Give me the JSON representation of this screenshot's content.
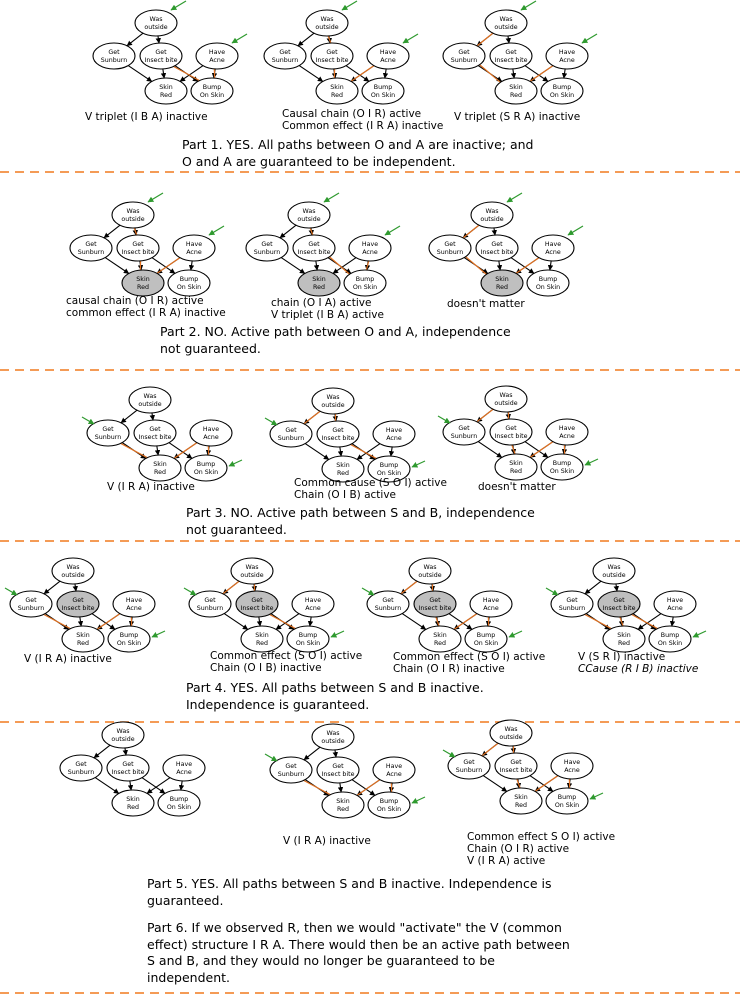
{
  "nodes": {
    "O": {
      "lines": [
        "Was",
        "outside"
      ]
    },
    "S": {
      "lines": [
        "Get",
        "Sunburn"
      ]
    },
    "I": {
      "lines": [
        "Get",
        "Insect bite"
      ]
    },
    "A": {
      "lines": [
        "Have",
        "Acne"
      ]
    },
    "R": {
      "lines": [
        "Skin",
        "Red"
      ]
    },
    "B": {
      "lines": [
        "Bump",
        "On Skin"
      ]
    }
  },
  "edges": [
    [
      "O",
      "S"
    ],
    [
      "O",
      "I"
    ],
    [
      "S",
      "R"
    ],
    [
      "I",
      "R"
    ],
    [
      "I",
      "B"
    ],
    [
      "A",
      "R"
    ],
    [
      "A",
      "B"
    ]
  ],
  "colors": {
    "path": "#e07020",
    "arrow": "#2f9a2f",
    "observed": "#bfbfbf",
    "divider": "#f07a1e",
    "stroke": "#000000"
  },
  "diagrams": [
    {
      "id": "p1a",
      "row": 1,
      "observed": [],
      "markers": [
        "O",
        "A"
      ],
      "path": [
        "I",
        "B",
        "A"
      ],
      "caption": [
        "V triplet (I B A) inactive"
      ]
    },
    {
      "id": "p1b",
      "row": 1,
      "observed": [],
      "markers": [
        "O",
        "A"
      ],
      "path": [
        "O",
        "I",
        "R",
        "A"
      ],
      "caption": [
        "Causal chain (O I R) active",
        "Common effect (I R A) inactive"
      ]
    },
    {
      "id": "p1c",
      "row": 1,
      "observed": [],
      "markers": [
        "O",
        "A"
      ],
      "path": [
        "O",
        "S",
        "R",
        "A"
      ],
      "caption": [
        "V triplet (S R A) inactive"
      ]
    },
    {
      "id": "p2a",
      "row": 2,
      "observed": [
        "R"
      ],
      "markers": [
        "O",
        "A"
      ],
      "path": [
        "O",
        "I",
        "R",
        "A"
      ],
      "caption": [
        "causal chain  (O I R) active",
        "common effect  (I R A) inactive"
      ]
    },
    {
      "id": "p2b",
      "row": 2,
      "observed": [
        "R"
      ],
      "markers": [
        "O",
        "A"
      ],
      "path": [
        "O",
        "I",
        "B",
        "A"
      ],
      "caption": [
        "chain (O I A) active",
        "V triplet (I B A) active"
      ]
    },
    {
      "id": "p2c",
      "row": 2,
      "observed": [
        "R"
      ],
      "markers": [
        "O",
        "A"
      ],
      "path": [
        "O",
        "S",
        "R",
        "A"
      ],
      "caption": [
        "doesn't matter"
      ]
    },
    {
      "id": "p3a",
      "row": 3,
      "observed": [],
      "markers": [
        "S",
        "B"
      ],
      "path": [
        "S",
        "R",
        "A",
        "B"
      ],
      "caption": [
        "V (I R A) inactive"
      ]
    },
    {
      "id": "p3b",
      "row": 3,
      "observed": [],
      "markers": [
        "S",
        "B"
      ],
      "path": [
        "S",
        "O",
        "I",
        "B"
      ],
      "caption": [
        "Common cause (S O I) active",
        "Chain (O I B) active"
      ]
    },
    {
      "id": "p3c",
      "row": 3,
      "observed": [],
      "markers": [
        "S",
        "B"
      ],
      "path": [
        "S",
        "O",
        "I",
        "R",
        "A",
        "B"
      ],
      "caption": [
        "doesn't matter"
      ]
    },
    {
      "id": "p4a",
      "row": 4,
      "observed": [
        "I"
      ],
      "markers": [
        "S",
        "B"
      ],
      "path": [
        "S",
        "R",
        "A",
        "B"
      ],
      "caption": [
        "V (I R A) inactive"
      ]
    },
    {
      "id": "p4b",
      "row": 4,
      "observed": [
        "I"
      ],
      "markers": [
        "S",
        "B"
      ],
      "path": [
        "S",
        "O",
        "I",
        "B"
      ],
      "caption": [
        "Common effect (S O I) active",
        "Chain (O I B) inactive"
      ]
    },
    {
      "id": "p4c",
      "row": 4,
      "observed": [
        "I"
      ],
      "markers": [
        "S",
        "B"
      ],
      "path": [
        "S",
        "O",
        "I",
        "R",
        "A",
        "B"
      ],
      "caption": [
        "Common effect (S O I) active",
        "Chain (O I R) inactive"
      ]
    },
    {
      "id": "p4d",
      "row": 4,
      "observed": [
        "I"
      ],
      "markers": [
        "S",
        "B"
      ],
      "path": [
        "S",
        "R",
        "I",
        "B"
      ],
      "caption": [
        "V (S R I) inactive",
        "CCause (R I B) inactive"
      ],
      "italic_last": true
    },
    {
      "id": "p5a",
      "row": 5,
      "observed": [],
      "markers": [],
      "path": [],
      "caption": []
    },
    {
      "id": "p5b",
      "row": 5,
      "observed": [],
      "markers": [
        "S",
        "B"
      ],
      "path": [
        "S",
        "R",
        "A",
        "B"
      ],
      "caption": [
        "V (I R A) inactive"
      ]
    },
    {
      "id": "p5c",
      "row": 5,
      "observed": [],
      "markers": [
        "S",
        "B"
      ],
      "path": [
        "S",
        "O",
        "I",
        "R",
        "A",
        "B"
      ],
      "caption": [
        "Common effect S O I) active",
        "Chain (O I R) active",
        "V (I R A) active"
      ]
    }
  ],
  "parts": [
    {
      "id": "part1",
      "lines": [
        "Part 1. YES. All paths between O and A are inactive; and",
        "O and A are guaranteed to be independent."
      ]
    },
    {
      "id": "part2",
      "lines": [
        "Part 2. NO. Active path between O and A, independence",
        "not guaranteed."
      ]
    },
    {
      "id": "part3",
      "lines": [
        "Part 3. NO. Active path between S and B, independence",
        "not guaranteed."
      ]
    },
    {
      "id": "part4",
      "lines": [
        "Part 4. YES. All paths between S and B inactive.",
        "Independence is guaranteed."
      ]
    },
    {
      "id": "part5",
      "lines": [
        "Part 5. YES. All paths between S and B inactive. Independence is",
        "guaranteed."
      ]
    },
    {
      "id": "part6",
      "lines": [
        "Part 6. If we observed R, then we would \"activate\" the V (common",
        "effect) structure I R A. There would then be an active path between",
        "S and B, and they would no longer be guaranteed to be",
        "independent."
      ]
    }
  ]
}
